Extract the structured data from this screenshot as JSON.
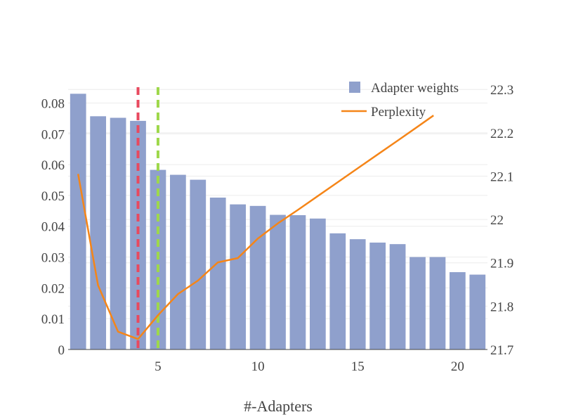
{
  "chart_data": {
    "type": "bar",
    "xlabel": "#-Adapters",
    "x": [
      1,
      2,
      3,
      4,
      5,
      6,
      7,
      8,
      9,
      10,
      11,
      12,
      13,
      14,
      15,
      16,
      17,
      18,
      19,
      20,
      21
    ],
    "x_range": [
      0.5,
      21.5
    ],
    "x_ticks": [
      5,
      10,
      15,
      20
    ],
    "series": [
      {
        "name": "Adapter weights",
        "kind": "bar",
        "axis": "left",
        "color": "#8fa0cc",
        "values": [
          0.083,
          0.0757,
          0.0752,
          0.0742,
          0.0583,
          0.0567,
          0.0551,
          0.0493,
          0.0471,
          0.0466,
          0.0437,
          0.0436,
          0.0425,
          0.0377,
          0.0358,
          0.0347,
          0.0342,
          0.03,
          0.03,
          0.0251,
          0.0243
        ]
      },
      {
        "name": "Perplexity",
        "kind": "line",
        "axis": "right",
        "color": "#f58518",
        "x": [
          1,
          2,
          3,
          4,
          5,
          6,
          7,
          8,
          9,
          10,
          11,
          12,
          13,
          14,
          15,
          16,
          17,
          18,
          18.8
        ],
        "values": [
          22.105,
          21.848,
          21.741,
          21.724,
          21.779,
          21.828,
          21.859,
          21.901,
          21.911,
          21.956,
          21.991,
          22.022,
          22.054,
          22.086,
          22.118,
          22.15,
          22.182,
          22.214,
          22.24
        ]
      }
    ],
    "y_left": {
      "range": [
        0,
        0.0865
      ],
      "ticks": [
        0,
        0.01,
        0.02,
        0.03,
        0.04,
        0.05,
        0.06,
        0.07,
        0.08
      ],
      "tick_labels": [
        "0",
        "0.01",
        "0.02",
        "0.03",
        "0.04",
        "0.05",
        "0.06",
        "0.07",
        "0.08"
      ]
    },
    "y_right": {
      "range": [
        21.7,
        22.315
      ],
      "ticks": [
        21.7,
        21.8,
        21.9,
        22.0,
        22.1,
        22.2,
        22.3
      ],
      "tick_labels": [
        "21.7",
        "21.8",
        "21.9",
        "22",
        "22.1",
        "22.2",
        "22.3"
      ]
    },
    "vertical_lines": [
      {
        "x": 4,
        "color": "#e8495f",
        "style": "dashed"
      },
      {
        "x": 5,
        "color": "#9ed84a",
        "style": "dashed"
      }
    ],
    "grid": true,
    "legend_position": "top-right"
  }
}
